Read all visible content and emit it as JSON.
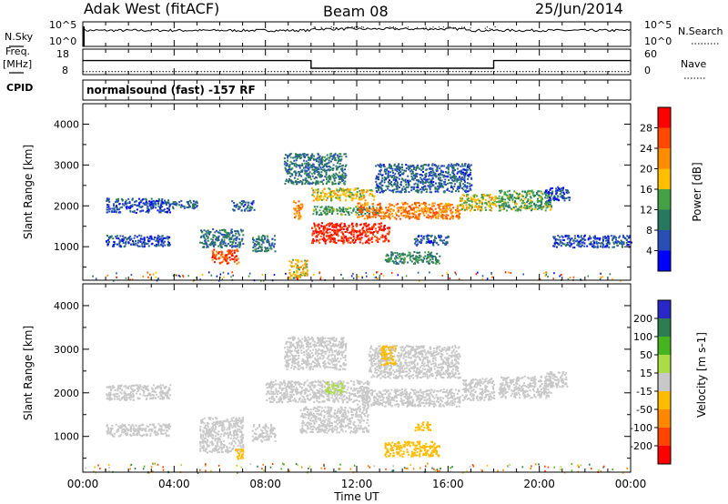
{
  "header": {
    "station": "Adak West (fitACF)",
    "beam": "Beam 08",
    "date": "25/Jun/2014"
  },
  "nsky_panel": {
    "left_label": "N.Sky",
    "right_label": "N.Search",
    "left_ticks": [
      "10^5",
      "10^0"
    ],
    "right_ticks": [
      "10^5",
      "10^0"
    ]
  },
  "freq_panel": {
    "left_label_line1": "Freq.",
    "left_label_line2": "[MHz]",
    "left_ticks": [
      "18",
      "8"
    ],
    "right_label": "Nave",
    "right_ticks": [
      "60",
      "0"
    ]
  },
  "cpid": {
    "label": "CPID",
    "text": "normalsound (fast) -157 RF"
  },
  "x_axis": {
    "ticks": [
      "00:00",
      "04:00",
      "08:00",
      "12:00",
      "16:00",
      "20:00",
      "00:00"
    ],
    "label": "Time UT"
  },
  "power_panel": {
    "ylabel": "Slant Range [km]",
    "yticks": [
      "4000",
      "3000",
      "2000",
      "1000"
    ],
    "colorbar_label": "Power [dB]",
    "colorbar_ticks": [
      "28",
      "24",
      "20",
      "16",
      "12",
      "8",
      "4"
    ],
    "colorbar_colors": [
      "#ff0000",
      "#ff4800",
      "#ff8c00",
      "#ffbf00",
      "#46a046",
      "#287860",
      "#2850b4",
      "#0000ff"
    ]
  },
  "velocity_panel": {
    "ylabel": "Slant Range [km]",
    "yticks": [
      "4000",
      "3000",
      "2000",
      "1000"
    ],
    "colorbar_label": "Velocity [m s-1]",
    "colorbar_ticks": [
      "200",
      "100",
      "50",
      "15",
      "-15",
      "-50",
      "-100",
      "-200"
    ],
    "colorbar_colors": [
      "#2828c8",
      "#2d7d50",
      "#46b41e",
      "#aadc46",
      "#c8c8c8",
      "#ffbb00",
      "#ff8800",
      "#ff4400",
      "#ff0000"
    ]
  },
  "chart_data": {
    "type": "heatmap",
    "x_range_hours": [
      0,
      24
    ],
    "y_range_km": [
      180,
      4500
    ],
    "nsky_log_range": [
      0,
      5
    ],
    "freq_range_mhz": [
      8,
      18
    ],
    "nave_range": [
      0,
      60
    ],
    "frequency_segments": [
      {
        "start": 0,
        "end": 10,
        "mhz": 13.5
      },
      {
        "start": 10,
        "end": 18,
        "mhz": 10.5
      },
      {
        "start": 18,
        "end": 24,
        "mhz": 13.5
      }
    ],
    "nave_level": 7,
    "power_bands": [
      {
        "t0": 1.0,
        "t1": 3.8,
        "r0": 1850,
        "r1": 2200,
        "power": 6
      },
      {
        "t0": 1.0,
        "t1": 3.8,
        "r0": 1020,
        "r1": 1300,
        "power": 6
      },
      {
        "t0": 3.8,
        "t1": 5.0,
        "r0": 1950,
        "r1": 2150,
        "power": 7
      },
      {
        "t0": 5.1,
        "t1": 7.0,
        "r0": 1000,
        "r1": 1450,
        "power": 9
      },
      {
        "t0": 5.6,
        "t1": 6.8,
        "r0": 600,
        "r1": 950,
        "power": 26
      },
      {
        "t0": 6.5,
        "t1": 7.5,
        "r0": 1900,
        "r1": 2150,
        "power": 7
      },
      {
        "t0": 7.4,
        "t1": 8.4,
        "r0": 900,
        "r1": 1300,
        "power": 9
      },
      {
        "t0": 8.8,
        "t1": 11.5,
        "r0": 2550,
        "r1": 3300,
        "power": 9
      },
      {
        "t0": 9.0,
        "t1": 9.8,
        "r0": 250,
        "r1": 700,
        "power": 18
      },
      {
        "t0": 9.2,
        "t1": 9.6,
        "r0": 1700,
        "r1": 2150,
        "power": 22
      },
      {
        "t0": 10.0,
        "t1": 13.4,
        "r0": 1100,
        "r1": 1600,
        "power": 28
      },
      {
        "t0": 10.0,
        "t1": 12.8,
        "r0": 2150,
        "r1": 2450,
        "power": 18
      },
      {
        "t0": 10.0,
        "t1": 13.0,
        "r0": 1800,
        "r1": 2000,
        "power": 13
      },
      {
        "t0": 12.0,
        "t1": 16.5,
        "r0": 1700,
        "r1": 2100,
        "power": 23
      },
      {
        "t0": 12.8,
        "t1": 17.0,
        "r0": 2350,
        "r1": 3050,
        "power": 7
      },
      {
        "t0": 13.2,
        "t1": 15.6,
        "r0": 600,
        "r1": 900,
        "power": 11
      },
      {
        "t0": 14.5,
        "t1": 16.0,
        "r0": 1050,
        "r1": 1300,
        "power": 7
      },
      {
        "t0": 16.5,
        "t1": 18.2,
        "r0": 1900,
        "r1": 2300,
        "power": 18
      },
      {
        "t0": 18.2,
        "t1": 20.5,
        "r0": 1900,
        "r1": 2400,
        "power": 13
      },
      {
        "t0": 20.2,
        "t1": 21.3,
        "r0": 2150,
        "r1": 2500,
        "power": 6
      },
      {
        "t0": 20.5,
        "t1": 24.0,
        "r0": 1000,
        "r1": 1300,
        "power": 6
      }
    ],
    "velocity_bands": [
      {
        "t0": 1.0,
        "t1": 3.8,
        "r0": 1850,
        "r1": 2200,
        "velocity": 0
      },
      {
        "t0": 1.0,
        "t1": 3.8,
        "r0": 1020,
        "r1": 1300,
        "velocity": 0
      },
      {
        "t0": 5.1,
        "t1": 7.0,
        "r0": 650,
        "r1": 1450,
        "velocity": 0
      },
      {
        "t0": 6.6,
        "t1": 7.0,
        "r0": 500,
        "r1": 750,
        "velocity": -30
      },
      {
        "t0": 7.4,
        "t1": 8.4,
        "r0": 900,
        "r1": 1300,
        "velocity": 0
      },
      {
        "t0": 8.0,
        "t1": 12.5,
        "r0": 1800,
        "r1": 2300,
        "velocity": 0
      },
      {
        "t0": 8.8,
        "t1": 11.5,
        "r0": 2550,
        "r1": 3300,
        "velocity": 0
      },
      {
        "t0": 9.5,
        "t1": 12.5,
        "r0": 1100,
        "r1": 1700,
        "velocity": 0
      },
      {
        "t0": 10.6,
        "t1": 11.4,
        "r0": 2000,
        "r1": 2250,
        "velocity": 30
      },
      {
        "t0": 12.0,
        "t1": 16.5,
        "r0": 1700,
        "r1": 2100,
        "velocity": 0
      },
      {
        "t0": 12.5,
        "t1": 16.5,
        "r0": 2350,
        "r1": 3100,
        "velocity": 0
      },
      {
        "t0": 13.0,
        "t1": 13.7,
        "r0": 2650,
        "r1": 3100,
        "velocity": -30
      },
      {
        "t0": 13.2,
        "t1": 15.6,
        "r0": 550,
        "r1": 900,
        "velocity": -30
      },
      {
        "t0": 14.5,
        "t1": 15.2,
        "r0": 1150,
        "r1": 1350,
        "velocity": -30
      },
      {
        "t0": 16.6,
        "t1": 18.0,
        "r0": 1850,
        "r1": 2350,
        "velocity": 0
      },
      {
        "t0": 18.2,
        "t1": 20.5,
        "r0": 1900,
        "r1": 2400,
        "velocity": 0
      },
      {
        "t0": 20.2,
        "t1": 21.2,
        "r0": 2150,
        "r1": 2500,
        "velocity": 0
      }
    ]
  }
}
